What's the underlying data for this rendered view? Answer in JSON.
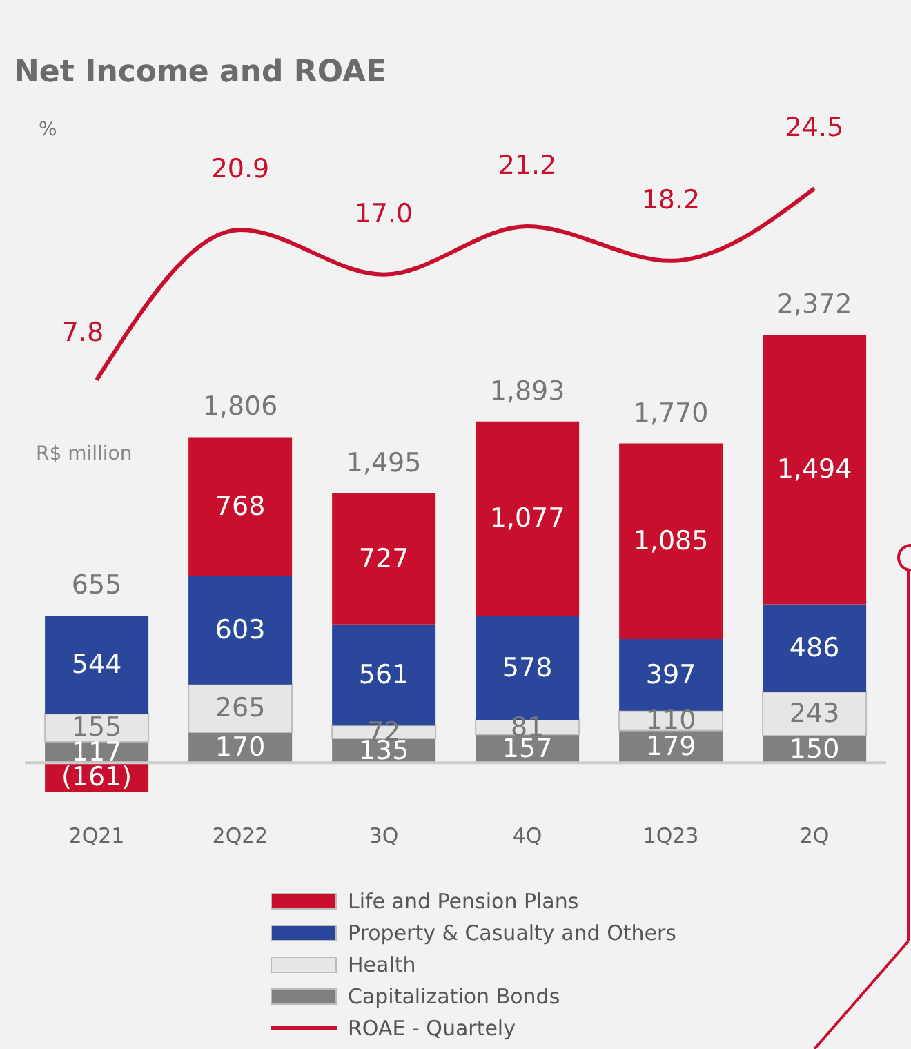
{
  "chart_data": {
    "type": "bar",
    "title": "Net Income and ROAE",
    "ylabel": "R$ million",
    "annotations": [
      "%"
    ],
    "stacked": true,
    "categories": [
      "2Q21",
      "2Q22",
      "3Q",
      "4Q",
      "1Q23",
      "2Q"
    ],
    "series": [
      {
        "name": "Capitalization Bonds",
        "color": "#808080",
        "values": [
          117,
          170,
          135,
          157,
          179,
          150
        ],
        "value_labels": [
          "117",
          "170",
          "135",
          "157",
          "179",
          "150"
        ]
      },
      {
        "name": "Health",
        "color": "#e6e6e6",
        "values": [
          155,
          265,
          72,
          81,
          110,
          243
        ],
        "value_labels": [
          "155",
          "265",
          "72",
          "81",
          "110",
          "243"
        ]
      },
      {
        "name": "Property & Casualty and Others",
        "color": "#2b479b",
        "values": [
          544,
          603,
          561,
          578,
          397,
          486
        ],
        "value_labels": [
          "544",
          "603",
          "561",
          "578",
          "397",
          "486"
        ]
      },
      {
        "name": "Life and Pension Plans",
        "color": "#c8102e",
        "values": [
          -161,
          768,
          727,
          1077,
          1085,
          1494
        ],
        "value_labels": [
          "(161)",
          "768",
          "727",
          "1,077",
          "1,085",
          "1,494"
        ]
      },
      {
        "name": "ROAE - Quartely",
        "type": "line",
        "axis": "y2",
        "color": "#c8102e",
        "values": [
          7.8,
          20.9,
          17.0,
          21.2,
          18.2,
          24.5
        ],
        "value_labels": [
          "7.8",
          "20.9",
          "17.0",
          "21.2",
          "18.2",
          "24.5"
        ]
      }
    ],
    "totals": [
      "655",
      "1,806",
      "1,495",
      "1,893",
      "1,770",
      "2,372"
    ],
    "ref_lines": [
      {
        "axis": "y",
        "value": 0,
        "color": "#cccccc"
      }
    ],
    "grid": false,
    "legend": "bottom",
    "marker": "none",
    "line_style": "solid"
  }
}
